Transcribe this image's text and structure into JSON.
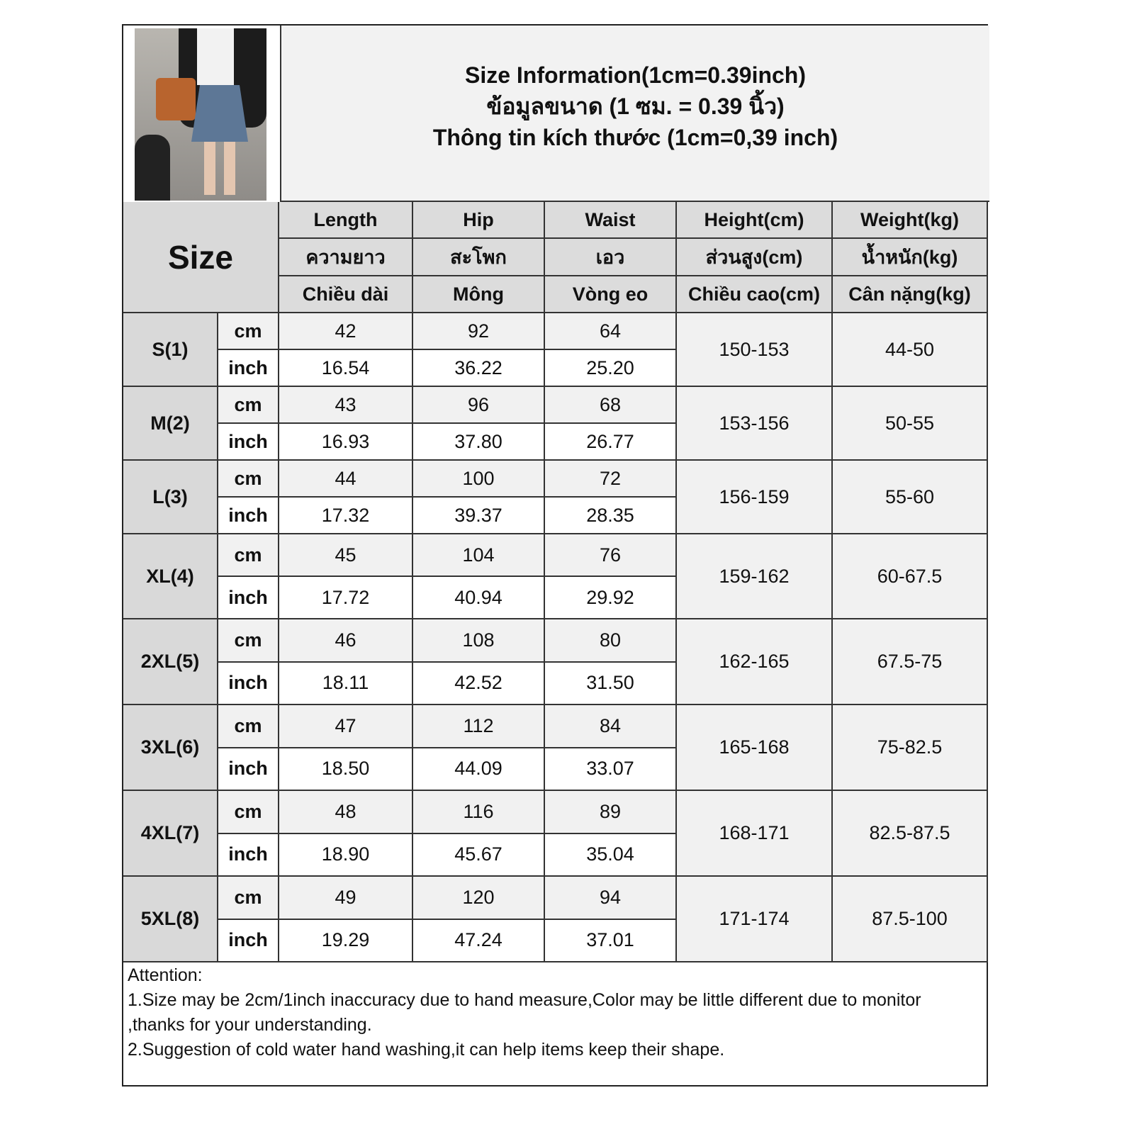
{
  "title": {
    "line1": "Size Information(1cm=0.39inch)",
    "line2": "ข้อมูลขนาด (1 ซม. = 0.39 นิ้ว)",
    "line3": "Thông tin kích thước (1cm=0,39 inch)"
  },
  "colors": {
    "header_bg": "#dcdcdc",
    "size_bg": "#d9d9d9",
    "cm_row_bg": "#f1f1f1",
    "title_bg": "#f2f2f2"
  },
  "size_label": "Size",
  "columns": [
    {
      "en": "Length",
      "th": "ความยาว",
      "vi": "Chiều dài"
    },
    {
      "en": "Hip",
      "th": "สะโพก",
      "vi": "Mông"
    },
    {
      "en": "Waist",
      "th": "เอว",
      "vi": "Vòng eo"
    },
    {
      "en": "Height(cm)",
      "th": "ส่วนสูง(cm)",
      "vi": "Chiều cao(cm)"
    },
    {
      "en": "Weight(kg)",
      "th": "น้ำหนัก(kg)",
      "vi": "Cân nặng(kg)"
    }
  ],
  "units": {
    "cm": "cm",
    "inch": "inch"
  },
  "rows": [
    {
      "size": "S(1)",
      "cm": [
        "42",
        "92",
        "64"
      ],
      "inch": [
        "16.54",
        "36.22",
        "25.20"
      ],
      "height": "150-153",
      "weight": "44-50"
    },
    {
      "size": "M(2)",
      "cm": [
        "43",
        "96",
        "68"
      ],
      "inch": [
        "16.93",
        "37.80",
        "26.77"
      ],
      "height": "153-156",
      "weight": "50-55"
    },
    {
      "size": "L(3)",
      "cm": [
        "44",
        "100",
        "72"
      ],
      "inch": [
        "17.32",
        "39.37",
        "28.35"
      ],
      "height": "156-159",
      "weight": "55-60"
    },
    {
      "size": "XL(4)",
      "cm": [
        "45",
        "104",
        "76"
      ],
      "inch": [
        "17.72",
        "40.94",
        "29.92"
      ],
      "height": "159-162",
      "weight": "60-67.5"
    },
    {
      "size": "2XL(5)",
      "cm": [
        "46",
        "108",
        "80"
      ],
      "inch": [
        "18.11",
        "42.52",
        "31.50"
      ],
      "height": "162-165",
      "weight": "67.5-75"
    },
    {
      "size": "3XL(6)",
      "cm": [
        "47",
        "112",
        "84"
      ],
      "inch": [
        "18.50",
        "44.09",
        "33.07"
      ],
      "height": "165-168",
      "weight": "75-82.5"
    },
    {
      "size": "4XL(7)",
      "cm": [
        "48",
        "116",
        "89"
      ],
      "inch": [
        "18.90",
        "45.67",
        "35.04"
      ],
      "height": "168-171",
      "weight": "82.5-87.5"
    },
    {
      "size": "5XL(8)",
      "cm": [
        "49",
        "120",
        "94"
      ],
      "inch": [
        "19.29",
        "47.24",
        "37.01"
      ],
      "height": "171-174",
      "weight": "87.5-100"
    }
  ],
  "attention": {
    "heading": "Attention:",
    "note1": "1.Size may be 2cm/1inch inaccuracy due to hand measure,Color may be little different due to monitor ,thanks for your understanding.",
    "note2": "2.Suggestion of cold water hand washing,it can help items keep their shape."
  }
}
